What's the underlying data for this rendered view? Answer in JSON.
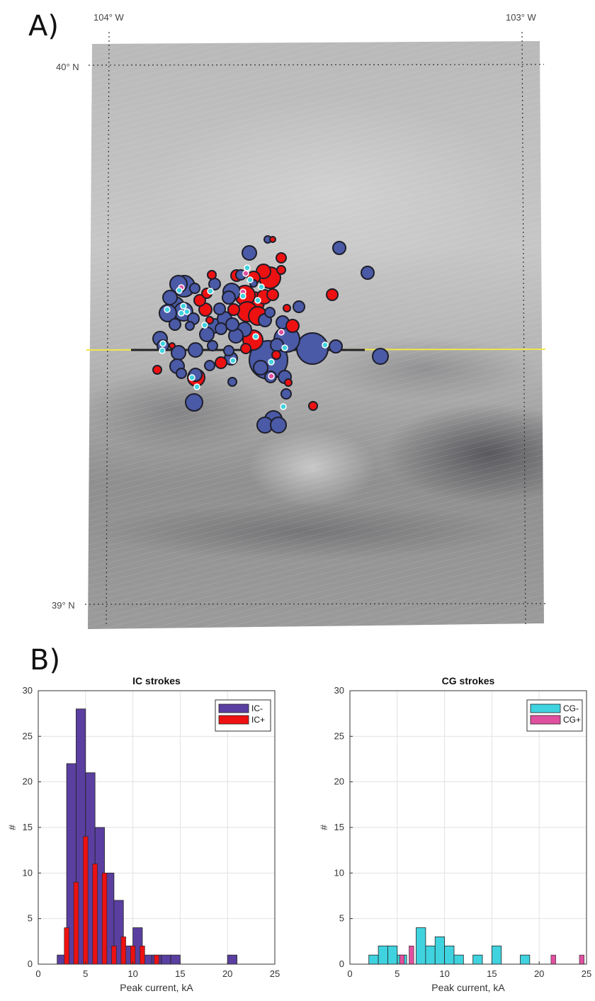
{
  "figure": {
    "panel_a_label": "A)",
    "panel_b_label": "B)"
  },
  "map": {
    "lon_labels": [
      "104° W",
      "103° W"
    ],
    "lat_labels": [
      "40° N",
      "39° N"
    ],
    "colors": {
      "ic_neg": "#4a5aa6",
      "ic_pos": "#ee1111",
      "cg_neg": "#3fd3df",
      "cg_pos": "#e0509f",
      "line": "#f2e64a",
      "track": "#222222"
    }
  },
  "chart_data": [
    {
      "type": "bar",
      "title": "IC strokes",
      "xlabel": "Peak current, kA",
      "ylabel": "#",
      "xlim": [
        0,
        25
      ],
      "ylim": [
        0,
        30
      ],
      "xticks": [
        0,
        5,
        10,
        15,
        20,
        25
      ],
      "yticks": [
        0,
        5,
        10,
        15,
        20,
        25,
        30
      ],
      "grid": true,
      "legend_position": "top-right",
      "bin_width": 1,
      "series": [
        {
          "name": "IC-",
          "color": "#5a3fa0",
          "bin_starts": [
            2,
            3,
            4,
            5,
            6,
            7,
            8,
            9,
            10,
            11,
            12,
            13,
            14,
            20
          ],
          "values": [
            1,
            22,
            28,
            21,
            15,
            10,
            7,
            2,
            4,
            1,
            1,
            1,
            1,
            1
          ]
        },
        {
          "name": "IC+",
          "color": "#ee1111",
          "bin_starts": [
            2.25,
            2.75,
            3.25,
            3.75,
            4.25,
            4.75,
            5.25,
            5.75,
            6.25,
            6.75,
            7.25,
            7.75,
            8.25,
            8.75,
            9.25,
            9.75,
            10.25,
            10.75,
            12.25
          ],
          "bin_width": 0.5,
          "values": [
            0,
            4,
            0,
            9,
            0,
            14,
            0,
            11,
            0,
            10,
            0,
            2,
            0,
            3,
            0,
            2,
            0,
            2,
            1
          ]
        }
      ]
    },
    {
      "type": "bar",
      "title": "CG strokes",
      "xlabel": "Peak current, kA",
      "ylabel": "#",
      "xlim": [
        0,
        25
      ],
      "ylim": [
        0,
        30
      ],
      "xticks": [
        0,
        5,
        10,
        15,
        20,
        25
      ],
      "yticks": [
        0,
        5,
        10,
        15,
        20,
        25,
        30
      ],
      "grid": true,
      "legend_position": "top-right",
      "series": [
        {
          "name": "CG-",
          "color": "#3fd3df",
          "bin_starts": [
            2,
            3,
            4,
            5,
            7,
            8,
            9,
            10,
            11,
            13,
            15,
            18
          ],
          "bin_width": 1,
          "values": [
            1,
            2,
            2,
            1,
            4,
            2,
            3,
            2,
            1,
            1,
            2,
            1
          ]
        },
        {
          "name": "CG+",
          "color": "#e0509f",
          "bin_starts": [
            5.25,
            6.25,
            21.25,
            24.25
          ],
          "bin_width": 0.5,
          "values": [
            1,
            2,
            1,
            1
          ]
        }
      ]
    }
  ]
}
